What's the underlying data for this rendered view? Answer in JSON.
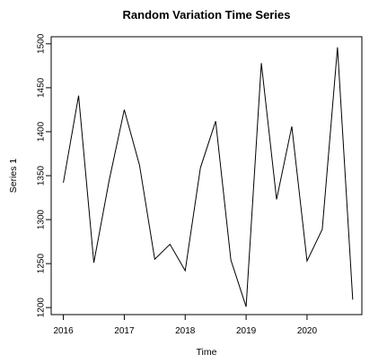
{
  "chart_data": {
    "type": "line",
    "title": "Random Variation Time Series",
    "xlabel": "Time",
    "ylabel": "Series 1",
    "xlim": [
      2015.8,
      2020.9
    ],
    "ylim": [
      1192,
      1508
    ],
    "x_ticks": [
      2016,
      2017,
      2018,
      2019,
      2020
    ],
    "x_tick_labels": [
      "2016",
      "2017",
      "2018",
      "2019",
      "2020"
    ],
    "y_ticks": [
      1200,
      1250,
      1300,
      1350,
      1400,
      1450,
      1500
    ],
    "y_tick_labels": [
      "1200",
      "1250",
      "1300",
      "1350",
      "1400",
      "1450",
      "1500"
    ],
    "grid": false,
    "legend": false,
    "series": [
      {
        "x": [
          2016.0,
          2016.25,
          2016.5,
          2016.75,
          2017.0,
          2017.25,
          2017.5,
          2017.75,
          2018.0,
          2018.25,
          2018.5,
          2018.75,
          2019.0,
          2019.25,
          2019.5,
          2019.75,
          2020.0,
          2020.25,
          2020.5,
          2020.75
        ],
        "values": [
          1342,
          1441,
          1251,
          1344,
          1425,
          1362,
          1255,
          1272,
          1242,
          1359,
          1412,
          1254,
          1201,
          1478,
          1323,
          1406,
          1253,
          1289,
          1496,
          1209
        ]
      }
    ]
  }
}
